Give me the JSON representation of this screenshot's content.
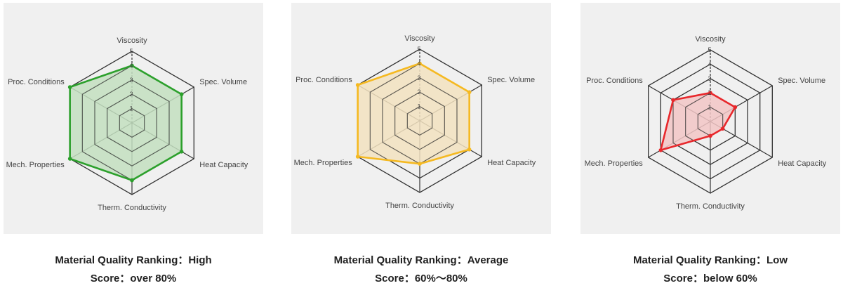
{
  "chart_data": [
    {
      "type": "radar",
      "axes": [
        "Viscosity",
        "Spec. Volume",
        "Heat Capacity",
        "Therm. Conductivity",
        "Mech. Properties",
        "Proc. Conditions"
      ],
      "ticks": [
        "1",
        "2",
        "3",
        "4",
        "5"
      ],
      "rlim": [
        0,
        5
      ],
      "values": [
        4,
        4,
        4,
        4,
        5,
        5
      ],
      "color": "#2ca02c",
      "fill": "#c3dfc0",
      "caption": {
        "ranking": "Material Quality Ranking：High",
        "score": "Score：over 80%"
      }
    },
    {
      "type": "radar",
      "axes": [
        "Viscosity",
        "Spec. Volume",
        "Heat Capacity",
        "Therm. Conductivity",
        "Mech. Properties",
        "Proc. Conditions"
      ],
      "ticks": [
        "1",
        "2",
        "3",
        "4",
        "5"
      ],
      "rlim": [
        0,
        5
      ],
      "values": [
        4,
        4,
        4,
        3,
        5,
        5
      ],
      "color": "#f5b921",
      "fill": "#f2e2c0",
      "caption": {
        "ranking": "Material Quality Ranking：Average",
        "score": "Score：60%～80%"
      }
    },
    {
      "type": "radar",
      "axes": [
        "Viscosity",
        "Spec. Volume",
        "Heat Capacity",
        "Therm. Conductivity",
        "Mech. Properties",
        "Proc. Conditions"
      ],
      "ticks": [
        "1",
        "2",
        "3",
        "4",
        "5"
      ],
      "rlim": [
        0,
        5
      ],
      "values": [
        2,
        2,
        1,
        1,
        4,
        3
      ],
      "color": "#e8282c",
      "fill": "#f2c6c6",
      "caption": {
        "ranking": "Material Quality Ranking：Low",
        "score": "Score：below 60%"
      }
    }
  ]
}
